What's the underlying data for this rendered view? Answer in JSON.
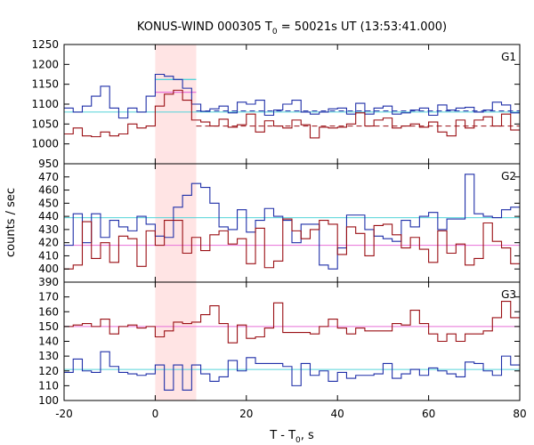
{
  "chart_data": {
    "type": "line",
    "title": "KONUS-WIND 000305 T",
    "title_sub": "0",
    "title_rest": " = 50021s UT (13:53:41.000)",
    "xlabel": "T - T",
    "xlabel_sub": "0",
    "xlabel_rest": ", s",
    "ylabel": "counts / sec",
    "xlim": [
      -20,
      80
    ],
    "x_ticks": [
      -20,
      0,
      20,
      40,
      60,
      80
    ],
    "x_tick_labels": [
      "-20",
      "0",
      "20",
      "40",
      "60",
      "80"
    ],
    "highlight_interval": [
      0,
      9
    ],
    "colors": {
      "blue": "#1f2fa8",
      "red": "#9a0f14",
      "blue_background": "#55d4d9",
      "red_background": "#e86fd8",
      "highlight": "#ffe4e4"
    },
    "panels": [
      {
        "label": "G1",
        "ylim": [
          950,
          1250
        ],
        "y_ticks": [
          950,
          1000,
          1050,
          1100,
          1150,
          1200,
          1250
        ],
        "y_tick_labels": [
          "950",
          "1000",
          "1050",
          "1100",
          "1150",
          "1200",
          "1250"
        ],
        "bin_edges": [
          -20,
          -18,
          -16,
          -14,
          -12,
          -10,
          -8,
          -6,
          -4,
          -2,
          0,
          2,
          4,
          6,
          8,
          10,
          12,
          14,
          16,
          18,
          20,
          22,
          24,
          26,
          28,
          30,
          32,
          34,
          36,
          38,
          40,
          42,
          44,
          46,
          48,
          50,
          52,
          54,
          56,
          58,
          60,
          62,
          64,
          66,
          68,
          70,
          72,
          74,
          76,
          78,
          80
        ],
        "series": [
          {
            "color": "blue",
            "values": [
              1090,
              1080,
              1095,
              1120,
              1145,
              1090,
              1065,
              1090,
              1080,
              1120,
              1175,
              1170,
              1162,
              1140,
              1100,
              1082,
              1088,
              1095,
              1078,
              1105,
              1100,
              1110,
              1072,
              1085,
              1100,
              1110,
              1080,
              1075,
              1080,
              1088,
              1090,
              1075,
              1102,
              1075,
              1090,
              1095,
              1075,
              1078,
              1085,
              1090,
              1072,
              1098,
              1085,
              1090,
              1092,
              1080,
              1085,
              1105,
              1098,
              1078
            ]
          },
          {
            "color": "red",
            "values": [
              1025,
              1040,
              1020,
              1018,
              1030,
              1020,
              1025,
              1050,
              1040,
              1045,
              1095,
              1125,
              1135,
              1110,
              1060,
              1055,
              1045,
              1062,
              1042,
              1048,
              1075,
              1030,
              1058,
              1045,
              1040,
              1060,
              1048,
              1015,
              1042,
              1040,
              1042,
              1050,
              1078,
              1045,
              1060,
              1065,
              1040,
              1045,
              1050,
              1042,
              1055,
              1030,
              1020,
              1060,
              1040,
              1060,
              1068,
              1045,
              1075,
              1035
            ]
          }
        ],
        "background": [
          {
            "color": "blue_background",
            "value": 1080,
            "style": "solid"
          },
          {
            "color": "blue",
            "value": 1083,
            "style": "dashed",
            "x_start": 9
          },
          {
            "color": "red",
            "value": 1045,
            "style": "dashed",
            "x_start": 9
          }
        ],
        "segments": [
          {
            "color": "blue_background",
            "x": [
              0,
              9
            ],
            "value": 1162
          },
          {
            "color": "red_background",
            "x": [
              0,
              9
            ],
            "value": 1130
          }
        ]
      },
      {
        "label": "G2",
        "ylim": [
          390,
          480
        ],
        "y_ticks": [
          390,
          400,
          410,
          420,
          430,
          440,
          450,
          460,
          470
        ],
        "y_tick_labels": [
          "390",
          "400",
          "410",
          "420",
          "430",
          "440",
          "450",
          "460",
          "470"
        ],
        "bin_edges": [
          -20,
          -18,
          -16,
          -14,
          -12,
          -10,
          -8,
          -6,
          -4,
          -2,
          0,
          2,
          4,
          6,
          8,
          10,
          12,
          14,
          16,
          18,
          20,
          22,
          24,
          26,
          28,
          30,
          32,
          34,
          36,
          38,
          40,
          42,
          44,
          46,
          48,
          50,
          52,
          54,
          56,
          58,
          60,
          62,
          64,
          66,
          68,
          70,
          72,
          74,
          76,
          78,
          80
        ],
        "series": [
          {
            "color": "blue",
            "values": [
              418,
              442,
              420,
              442,
              424,
              437,
              432,
              429,
              440,
              434,
              425,
              424,
              447,
              456,
              465,
              462,
              450,
              432,
              430,
              445,
              428,
              437,
              446,
              440,
              437,
              420,
              434,
              434,
              403,
              400,
              416,
              441,
              441,
              430,
              425,
              423,
              421,
              437,
              432,
              440,
              443,
              430,
              438,
              438,
              472,
              442,
              440,
              439,
              445,
              447
            ]
          },
          {
            "color": "red",
            "values": [
              400,
              403,
              436,
              408,
              420,
              405,
              425,
              423,
              402,
              429,
              418,
              437,
              437,
              412,
              424,
              414,
              426,
              429,
              419,
              423,
              404,
              431,
              401,
              406,
              438,
              429,
              423,
              430,
              437,
              434,
              411,
              432,
              427,
              410,
              433,
              434,
              426,
              416,
              424,
              415,
              405,
              429,
              412,
              419,
              403,
              408,
              435,
              421,
              416,
              404
            ]
          }
        ],
        "background": [
          {
            "color": "blue_background",
            "value": 439,
            "style": "solid"
          },
          {
            "color": "red_background",
            "value": 418,
            "style": "solid"
          }
        ],
        "segments": []
      },
      {
        "label": "G3",
        "ylim": [
          100,
          180
        ],
        "y_ticks": [
          100,
          110,
          120,
          130,
          140,
          150,
          160,
          170
        ],
        "y_tick_labels": [
          "100",
          "110",
          "120",
          "130",
          "140",
          "150",
          "160",
          "170"
        ],
        "bin_edges": [
          -20,
          -18,
          -16,
          -14,
          -12,
          -10,
          -8,
          -6,
          -4,
          -2,
          0,
          2,
          4,
          6,
          8,
          10,
          12,
          14,
          16,
          18,
          20,
          22,
          24,
          26,
          28,
          30,
          32,
          34,
          36,
          38,
          40,
          42,
          44,
          46,
          48,
          50,
          52,
          54,
          56,
          58,
          60,
          62,
          64,
          66,
          68,
          70,
          72,
          74,
          76,
          78,
          80
        ],
        "series": [
          {
            "color": "blue",
            "values": [
              119,
              128,
              120,
              119,
              133,
              123,
              119,
              118,
              117,
              118,
              124,
              107,
              124,
              107,
              124,
              118,
              113,
              116,
              127,
              120,
              129,
              125,
              125,
              125,
              123,
              110,
              125,
              117,
              120,
              113,
              119,
              115,
              117,
              117,
              118,
              125,
              115,
              118,
              121,
              117,
              122,
              120,
              118,
              116,
              126,
              125,
              120,
              117,
              130,
              124
            ]
          },
          {
            "color": "red",
            "values": [
              150,
              151,
              152,
              150,
              155,
              145,
              150,
              151,
              149,
              150,
              143,
              147,
              153,
              152,
              153,
              158,
              164,
              152,
              139,
              151,
              142,
              143,
              149,
              166,
              146,
              146,
              146,
              145,
              150,
              155,
              149,
              145,
              149,
              147,
              147,
              147,
              152,
              151,
              161,
              152,
              145,
              140,
              145,
              140,
              145,
              145,
              147,
              156,
              167,
              156
            ]
          }
        ],
        "background": [
          {
            "color": "blue_background",
            "value": 121,
            "style": "solid"
          },
          {
            "color": "red_background",
            "value": 150,
            "style": "solid"
          }
        ],
        "segments": []
      }
    ]
  }
}
